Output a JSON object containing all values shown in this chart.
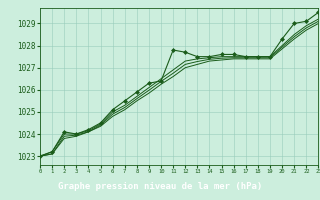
{
  "title": "Graphe pression niveau de la mer (hPa)",
  "bg_color": "#cceedd",
  "plot_bg_color": "#cceedd",
  "label_bg_color": "#2d6e2d",
  "label_text_color": "#ffffff",
  "grid_color": "#99ccbb",
  "line_color": "#1a5c1a",
  "marker_color": "#1a5c1a",
  "xlim": [
    0,
    23
  ],
  "ylim": [
    1022.6,
    1029.7
  ],
  "yticks": [
    1023,
    1024,
    1025,
    1026,
    1027,
    1028,
    1029
  ],
  "xtick_labels": [
    "0",
    "1",
    "2",
    "3",
    "4",
    "5",
    "6",
    "7",
    "8",
    "9",
    "10",
    "11",
    "12",
    "13",
    "14",
    "15",
    "16",
    "17",
    "18",
    "19",
    "20",
    "21",
    "22",
    "23"
  ],
  "series": [
    {
      "x": [
        0,
        1,
        2,
        3,
        4,
        5,
        6,
        7,
        8,
        9,
        10,
        11,
        12,
        13,
        14,
        15,
        16,
        17,
        18,
        19,
        20,
        21,
        22,
        23
      ],
      "y": [
        1023.0,
        1023.2,
        1024.1,
        1024.0,
        1024.2,
        1024.5,
        1025.1,
        1025.5,
        1025.9,
        1026.3,
        1026.4,
        1027.8,
        1027.7,
        1027.5,
        1027.5,
        1027.6,
        1027.6,
        1027.5,
        1027.5,
        1027.5,
        1028.3,
        1029.0,
        1029.1,
        1029.5
      ],
      "has_markers": true
    },
    {
      "x": [
        0,
        1,
        2,
        3,
        4,
        5,
        6,
        7,
        8,
        9,
        10,
        11,
        12,
        13,
        14,
        15,
        16,
        17,
        18,
        19,
        20,
        21,
        22,
        23
      ],
      "y": [
        1023.0,
        1023.2,
        1024.0,
        1024.0,
        1024.15,
        1024.45,
        1025.0,
        1025.3,
        1025.7,
        1026.1,
        1026.5,
        1026.9,
        1027.3,
        1027.4,
        1027.45,
        1027.5,
        1027.5,
        1027.5,
        1027.5,
        1027.5,
        1028.0,
        1028.5,
        1028.9,
        1029.2
      ],
      "has_markers": false
    },
    {
      "x": [
        0,
        1,
        2,
        3,
        4,
        5,
        6,
        7,
        8,
        9,
        10,
        11,
        12,
        13,
        14,
        15,
        16,
        17,
        18,
        19,
        20,
        21,
        22,
        23
      ],
      "y": [
        1023.0,
        1023.1,
        1023.8,
        1023.9,
        1024.1,
        1024.35,
        1024.8,
        1025.1,
        1025.5,
        1025.85,
        1026.25,
        1026.6,
        1027.0,
        1027.15,
        1027.3,
        1027.35,
        1027.4,
        1027.4,
        1027.4,
        1027.4,
        1027.85,
        1028.3,
        1028.7,
        1029.0
      ],
      "has_markers": false
    },
    {
      "x": [
        0,
        1,
        2,
        3,
        4,
        5,
        6,
        7,
        8,
        9,
        10,
        11,
        12,
        13,
        14,
        15,
        16,
        17,
        18,
        19,
        20,
        21,
        22,
        23
      ],
      "y": [
        1023.0,
        1023.1,
        1023.9,
        1023.95,
        1024.1,
        1024.4,
        1024.9,
        1025.2,
        1025.6,
        1025.98,
        1026.38,
        1026.75,
        1027.15,
        1027.28,
        1027.38,
        1027.43,
        1027.45,
        1027.45,
        1027.45,
        1027.45,
        1027.93,
        1028.4,
        1028.8,
        1029.1
      ],
      "has_markers": false
    }
  ]
}
